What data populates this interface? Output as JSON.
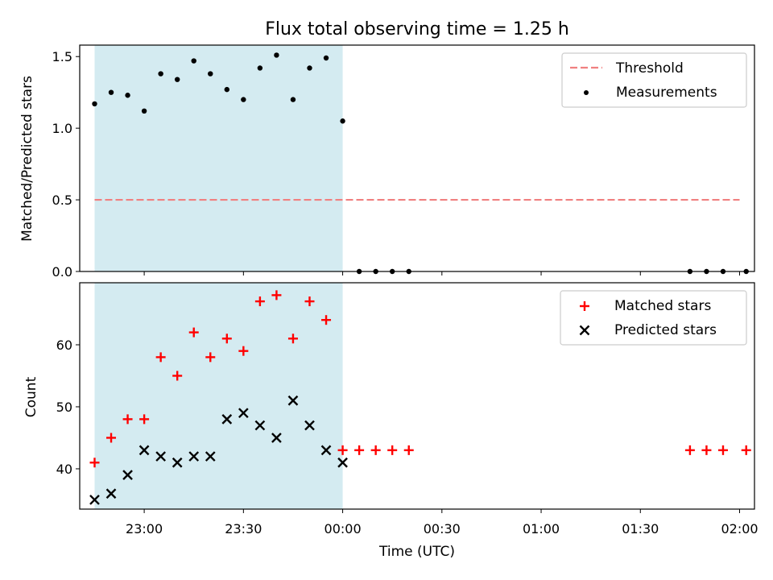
{
  "chart_data": [
    {
      "type": "scatter",
      "title": "Flux total observing time = 1.25 h",
      "xlabel": "",
      "ylabel": "Matched/Predicted stars",
      "ylim": [
        0,
        1.58
      ],
      "yticks": [
        "0.0",
        "0.5",
        "1.0",
        "1.5"
      ],
      "legend_position": "top-right",
      "shaded_interval": {
        "start": "22:45",
        "end": "00:00",
        "color": "#d4ebf1"
      },
      "series": [
        {
          "name": "Threshold",
          "kind": "dashed-line",
          "color": "#f08080",
          "x": [
            "22:45",
            "02:00"
          ],
          "values": [
            0.5,
            0.5
          ]
        },
        {
          "name": "Measurements",
          "kind": "dots",
          "color": "#000000",
          "x": [
            "22:45",
            "22:50",
            "22:55",
            "23:00",
            "23:05",
            "23:10",
            "23:15",
            "23:20",
            "23:25",
            "23:30",
            "23:35",
            "23:40",
            "23:45",
            "23:50",
            "23:55",
            "00:00",
            "00:05",
            "00:10",
            "00:15",
            "00:20",
            "01:45",
            "01:50",
            "01:55",
            "02:02"
          ],
          "values": [
            1.17,
            1.25,
            1.23,
            1.12,
            1.38,
            1.34,
            1.47,
            1.38,
            1.27,
            1.2,
            1.42,
            1.51,
            1.2,
            1.42,
            1.49,
            1.05,
            0,
            0,
            0,
            0,
            0,
            0,
            0,
            0
          ]
        }
      ]
    },
    {
      "type": "scatter",
      "xlabel": "Time (UTC)",
      "ylabel": "Count",
      "ylim": [
        33.5,
        70
      ],
      "yticks": [
        "40",
        "50",
        "60"
      ],
      "xticks": [
        "23:00",
        "23:30",
        "00:00",
        "00:30",
        "01:00",
        "01:30",
        "02:00"
      ],
      "legend_position": "top-right",
      "shaded_interval": {
        "start": "22:45",
        "end": "00:00",
        "color": "#d4ebf1"
      },
      "series": [
        {
          "name": "Matched stars",
          "marker": "plus",
          "color": "#ff0000",
          "x": [
            "22:45",
            "22:50",
            "22:55",
            "23:00",
            "23:05",
            "23:10",
            "23:15",
            "23:20",
            "23:25",
            "23:30",
            "23:35",
            "23:40",
            "23:45",
            "23:50",
            "23:55",
            "00:00",
            "00:05",
            "00:10",
            "00:15",
            "00:20",
            "01:45",
            "01:50",
            "01:55",
            "02:02"
          ],
          "values": [
            41,
            45,
            48,
            48,
            58,
            55,
            62,
            58,
            61,
            59,
            67,
            68,
            61,
            67,
            64,
            43,
            43,
            43,
            43,
            43,
            43,
            43,
            43,
            43
          ]
        },
        {
          "name": "Predicted stars",
          "marker": "x",
          "color": "#000000",
          "x": [
            "22:45",
            "22:50",
            "22:55",
            "23:00",
            "23:05",
            "23:10",
            "23:15",
            "23:20",
            "23:25",
            "23:30",
            "23:35",
            "23:40",
            "23:45",
            "23:50",
            "23:55",
            "00:00"
          ],
          "values": [
            35,
            36,
            39,
            43,
            42,
            41,
            42,
            42,
            48,
            49,
            47,
            45,
            51,
            47,
            43,
            41
          ]
        }
      ]
    }
  ]
}
